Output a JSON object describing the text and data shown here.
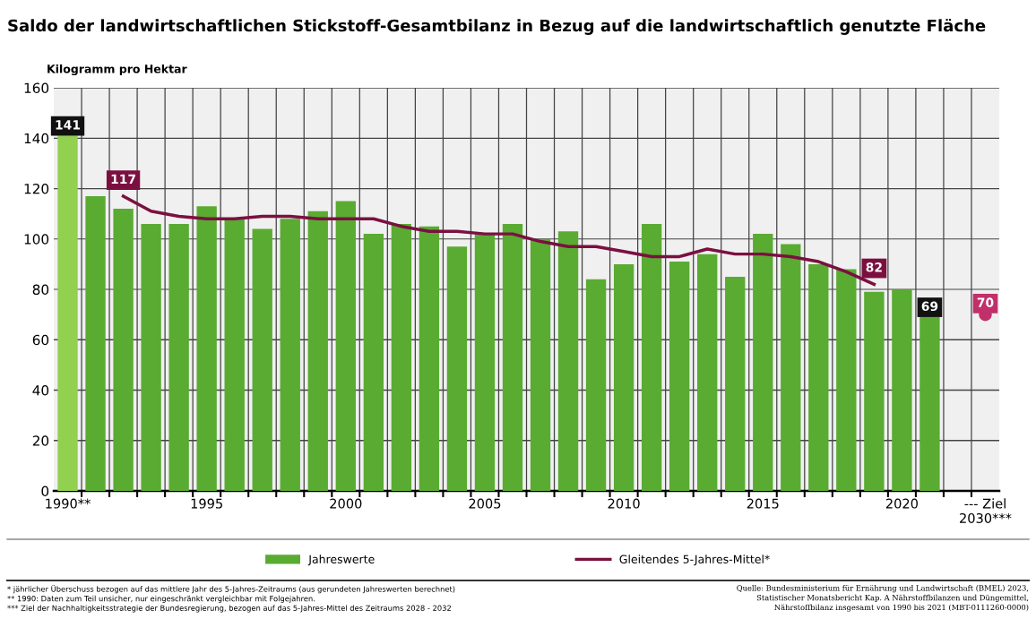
{
  "chart_data": {
    "type": "bar",
    "title": "Saldo der landwirtschaftlichen Stickstoff-Gesamtbilanz in Bezug auf die landwirtschaftlich genutzte Fläche",
    "ylabel": "Kilogramm pro Hektar",
    "categories": [
      "1990**",
      null,
      null,
      null,
      null,
      "1995",
      null,
      null,
      null,
      null,
      "2000",
      null,
      null,
      null,
      null,
      "2005",
      null,
      null,
      null,
      null,
      "2010",
      null,
      null,
      null,
      null,
      "2015",
      null,
      null,
      null,
      null,
      "2020",
      null,
      null,
      "--- Ziel\n2030***"
    ],
    "series": [
      {
        "name": "Jahreswerte",
        "color": "#5aab32",
        "colors": [
          "#92d050",
          "#5aab32",
          "#5aab32",
          "#5aab32",
          "#5aab32",
          "#5aab32",
          "#5aab32",
          "#5aab32",
          "#5aab32",
          "#5aab32",
          "#5aab32",
          "#5aab32",
          "#5aab32",
          "#5aab32",
          "#5aab32",
          "#5aab32",
          "#5aab32",
          "#5aab32",
          "#5aab32",
          "#5aab32",
          "#5aab32",
          "#5aab32",
          "#5aab32",
          "#5aab32",
          "#5aab32",
          "#5aab32",
          "#5aab32",
          "#5aab32",
          "#5aab32",
          "#5aab32",
          "#5aab32",
          "#5aab32",
          null,
          null
        ],
        "values": [
          141,
          117,
          112,
          106,
          106,
          113,
          108,
          104,
          108,
          111,
          115,
          102,
          106,
          105,
          97,
          102,
          106,
          100,
          103,
          84,
          90,
          106,
          91,
          94,
          85,
          102,
          98,
          90,
          88,
          79,
          80,
          69,
          null,
          null
        ],
        "value_labels": [
          "141",
          null,
          null,
          null,
          null,
          null,
          null,
          null,
          null,
          null,
          null,
          null,
          null,
          null,
          null,
          null,
          null,
          null,
          null,
          null,
          null,
          null,
          null,
          null,
          null,
          null,
          null,
          null,
          null,
          null,
          null,
          "69",
          null,
          null
        ]
      },
      {
        "name": "Gleitendes 5-Jahres-Mittel*",
        "type": "line",
        "color": "#7b1040",
        "values": [
          null,
          null,
          117,
          111,
          109,
          108,
          108,
          109,
          109,
          108,
          108,
          108,
          105,
          103,
          103,
          102,
          102,
          99,
          97,
          97,
          95,
          93,
          93,
          96,
          94,
          94,
          93,
          91,
          87,
          82,
          null,
          null,
          null,
          null
        ],
        "value_labels": [
          null,
          null,
          "117",
          null,
          null,
          null,
          null,
          null,
          null,
          null,
          null,
          null,
          null,
          null,
          null,
          null,
          null,
          null,
          null,
          null,
          null,
          null,
          null,
          null,
          null,
          null,
          null,
          null,
          null,
          "82",
          null,
          null,
          null,
          null
        ]
      },
      {
        "type": "scatter",
        "color": "#c0306a",
        "marker": "circle",
        "values": [
          null,
          null,
          null,
          null,
          null,
          null,
          null,
          null,
          null,
          null,
          null,
          null,
          null,
          null,
          null,
          null,
          null,
          null,
          null,
          null,
          null,
          null,
          null,
          null,
          null,
          null,
          null,
          null,
          null,
          null,
          null,
          null,
          null,
          70
        ],
        "value_labels": [
          null,
          null,
          null,
          null,
          null,
          null,
          null,
          null,
          null,
          null,
          null,
          null,
          null,
          null,
          null,
          null,
          null,
          null,
          null,
          null,
          null,
          null,
          null,
          null,
          null,
          null,
          null,
          null,
          null,
          null,
          null,
          null,
          null,
          "70"
        ]
      }
    ],
    "ylim": [
      0,
      160
    ],
    "yticks": [
      0,
      20,
      40,
      60,
      80,
      100,
      120,
      140,
      160
    ],
    "grid": true,
    "legend": "bottom",
    "annotations": [
      "* jährlicher Überschuss bezogen auf das mittlere Jahr des 5-Jahres-Zeitraums (aus gerundeten Jahreswerten berechnet)\n** 1990: Daten zum Teil unsicher, nur eingeschränkt vergleichbar mit Folgejahren.\n*** Ziel der Nachhaltigkeitsstrategie der Bundesregierung, bezogen auf das 5-Jahres-Mittel des Zeitraums 2028 - 2032",
      "Quelle: Bundesministerium für Ernährung und Landwirtschaft (BMEL) 2023,\nStatistischer Monatsbericht Kap. A Nährstoffbilanzen und Düngemittel,\nNährstoffbilanz insgesamt von 1990 bis 2021 (MBT-0111260-0000)"
    ]
  }
}
